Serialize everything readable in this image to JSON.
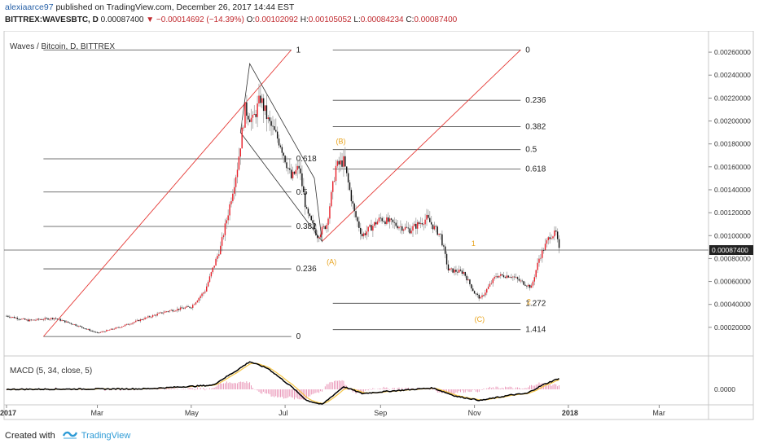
{
  "header": {
    "author": "alexiaarce97",
    "published_text": "published on TradingView.com, December 26, 2017 14:44 EST",
    "symbol": "BITTREX:WAVESBTC, D",
    "last_price": "0.00087400",
    "change_arrow": "▼",
    "change": "−0.00014692 (−14.39%)",
    "o_label": "O:",
    "o_value": "0.00102092",
    "h_label": "H:",
    "h_value": "0.00105052",
    "l_label": "L:",
    "l_value": "0.00084234",
    "c_label": "C:",
    "c_value": "0.00087400"
  },
  "footer": {
    "created_with": "Created with",
    "brand": "TradingView",
    "logo_icon": "tradingview-logo-icon"
  },
  "colors": {
    "up": "#e8202a",
    "down": "#111111",
    "wick": "#a0a0a0",
    "fib_line": "#444444",
    "trend": "#e53935",
    "wave_label": "#e8a21a",
    "macd": "#000000",
    "signal": "#f5c542",
    "hist": "#e57fa8",
    "price_tag_bg": "#222222"
  },
  "chart_data": {
    "type": "candlestick",
    "title": "Waves / Bitcoin, D, BITTREX",
    "ylim": [
      0.0,
      0.0027
    ],
    "y_ticks": [
      "0.00260000",
      "0.00240000",
      "0.00220000",
      "0.00200000",
      "0.00180000",
      "0.00160000",
      "0.00140000",
      "0.00120000",
      "0.00100000",
      "0.00080000",
      "0.00060000",
      "0.00040000",
      "0.00020000"
    ],
    "x_ticks": [
      "2017",
      "Mar",
      "May",
      "Jul",
      "Sep",
      "Nov",
      "2018",
      "Mar"
    ],
    "current_price_tag": "0.00087400",
    "price_anchors": [
      [
        "2017-01-01",
        0.0003
      ],
      [
        "2017-01-15",
        0.00026
      ],
      [
        "2017-02-01",
        0.00028
      ],
      [
        "2017-02-15",
        0.00022
      ],
      [
        "2017-03-01",
        0.00015
      ],
      [
        "2017-03-15",
        0.0002
      ],
      [
        "2017-04-01",
        0.00028
      ],
      [
        "2017-04-15",
        0.00034
      ],
      [
        "2017-05-01",
        0.00038
      ],
      [
        "2017-05-10",
        0.00052
      ],
      [
        "2017-05-20",
        0.0009
      ],
      [
        "2017-05-25",
        0.0012
      ],
      [
        "2017-05-31",
        0.0016
      ],
      [
        "2017-06-05",
        0.0021
      ],
      [
        "2017-06-10",
        0.002
      ],
      [
        "2017-06-15",
        0.0022
      ],
      [
        "2017-06-20",
        0.002
      ],
      [
        "2017-06-28",
        0.0018
      ],
      [
        "2017-07-05",
        0.0015
      ],
      [
        "2017-07-10",
        0.0016
      ],
      [
        "2017-07-15",
        0.0012
      ],
      [
        "2017-07-22",
        0.001
      ],
      [
        "2017-07-28",
        0.0011
      ],
      [
        "2017-08-03",
        0.0016
      ],
      [
        "2017-08-08",
        0.00165
      ],
      [
        "2017-08-15",
        0.0012
      ],
      [
        "2017-08-20",
        0.001
      ],
      [
        "2017-09-01",
        0.00115
      ],
      [
        "2017-09-10",
        0.0011
      ],
      [
        "2017-09-20",
        0.00105
      ],
      [
        "2017-10-01",
        0.00115
      ],
      [
        "2017-10-10",
        0.001
      ],
      [
        "2017-10-15",
        0.0007
      ],
      [
        "2017-10-25",
        0.00068
      ],
      [
        "2017-11-01",
        0.0005
      ],
      [
        "2017-11-05",
        0.00045
      ],
      [
        "2017-11-15",
        0.00065
      ],
      [
        "2017-11-25",
        0.00065
      ],
      [
        "2017-12-01",
        0.0006
      ],
      [
        "2017-12-08",
        0.00055
      ],
      [
        "2017-12-13",
        0.0008
      ],
      [
        "2017-12-20",
        0.001
      ],
      [
        "2017-12-24",
        0.00102
      ],
      [
        "2017-12-26",
        0.00087
      ]
    ],
    "fib_levels": [
      {
        "label": "1",
        "price": 0.00262,
        "x1": "2017-01-25",
        "x2": "2017-07-05"
      },
      {
        "label": "0.618",
        "price": 0.00167,
        "x1": "2017-01-25",
        "x2": "2017-07-05"
      },
      {
        "label": "0.5",
        "price": 0.00138,
        "x1": "2017-01-25",
        "x2": "2017-07-05"
      },
      {
        "label": "0.382",
        "price": 0.00108,
        "x1": "2017-01-25",
        "x2": "2017-07-05"
      },
      {
        "label": "0.236",
        "price": 0.00071,
        "x1": "2017-01-25",
        "x2": "2017-07-05"
      },
      {
        "label": "0",
        "price": 0.00012,
        "x1": "2017-01-25",
        "x2": "2017-07-05"
      },
      {
        "label": "0",
        "price": 0.00262,
        "x1": "2017-08-01",
        "x2": "2017-12-01"
      },
      {
        "label": "0.236",
        "price": 0.00218,
        "x1": "2017-08-01",
        "x2": "2017-12-01"
      },
      {
        "label": "0.382",
        "price": 0.00195,
        "x1": "2017-08-01",
        "x2": "2017-12-01"
      },
      {
        "label": "0.5",
        "price": 0.00175,
        "x1": "2017-08-01",
        "x2": "2017-12-01"
      },
      {
        "label": "0.618",
        "price": 0.00158,
        "x1": "2017-08-01",
        "x2": "2017-12-01"
      },
      {
        "label": "1.272",
        "price": 0.00041,
        "x1": "2017-08-01",
        "x2": "2017-12-01"
      },
      {
        "label": "1.414",
        "price": 0.00018,
        "x1": "2017-08-01",
        "x2": "2017-12-01"
      }
    ],
    "wave_labels": [
      {
        "label": "(B)",
        "x": "2017-08-03",
        "price": 0.0018
      },
      {
        "label": "(A)",
        "x": "2017-07-28",
        "price": 0.00075
      },
      {
        "label": "1",
        "x": "2017-10-30",
        "price": 0.00091
      },
      {
        "label": "(C)",
        "x": "2017-11-01",
        "price": 0.00025
      },
      {
        "label": "2",
        "x": "2017-12-05",
        "price": 0.0004
      }
    ],
    "macd": {
      "label": "MACD (5, 34, close, 5)",
      "y_tick": "0.0000",
      "anchors": [
        [
          "2017-01-01",
          0.0
        ],
        [
          "2017-04-01",
          0.02
        ],
        [
          "2017-05-15",
          0.15
        ],
        [
          "2017-05-31",
          0.7
        ],
        [
          "2017-06-08",
          1.0
        ],
        [
          "2017-06-20",
          0.75
        ],
        [
          "2017-07-05",
          0.1
        ],
        [
          "2017-07-15",
          -0.4
        ],
        [
          "2017-07-25",
          -0.55
        ],
        [
          "2017-08-08",
          0.1
        ],
        [
          "2017-08-20",
          -0.15
        ],
        [
          "2017-09-10",
          -0.05
        ],
        [
          "2017-10-05",
          0.05
        ],
        [
          "2017-10-20",
          -0.25
        ],
        [
          "2017-11-05",
          -0.4
        ],
        [
          "2017-11-25",
          -0.2
        ],
        [
          "2017-12-05",
          -0.15
        ],
        [
          "2017-12-15",
          0.15
        ],
        [
          "2017-12-26",
          0.4
        ]
      ]
    }
  }
}
